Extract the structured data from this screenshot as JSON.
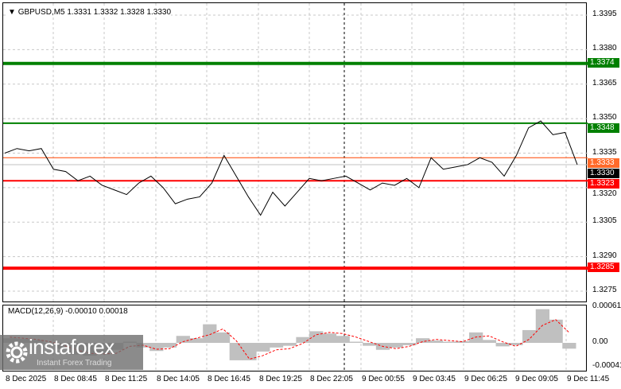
{
  "symbol_header": "GBPUSD,M5  1.3331 1.3332 1.3328 1.3330",
  "price_axis": [
    "1.3395",
    "1.3380",
    "1.3365",
    "1.3350",
    "1.3335",
    "1.3320",
    "1.3305",
    "1.3290",
    "1.3275"
  ],
  "price_axis_values": [
    1.3395,
    1.338,
    1.3365,
    1.335,
    1.3335,
    1.332,
    1.3305,
    1.329,
    1.3275
  ],
  "levels": [
    {
      "label": "1.3374",
      "value": 1.3374,
      "color": "#008000",
      "thick": true
    },
    {
      "label": "1.3348",
      "value": 1.3348,
      "color": "#008000",
      "thick": false
    },
    {
      "label": "1.3333",
      "value": 1.3333,
      "color": "#ff4500",
      "thick": false
    },
    {
      "label": "1.3330",
      "value": 1.333,
      "color": "#000000",
      "thick": false
    },
    {
      "label": "1.3323",
      "value": 1.3323,
      "color": "#ff0000",
      "thick": false
    },
    {
      "label": "1.3285",
      "value": 1.3285,
      "color": "#ff0000",
      "thick": true
    }
  ],
  "price_series": [
    1.3335,
    1.3337,
    1.3336,
    1.3337,
    1.3328,
    1.3327,
    1.3323,
    1.3325,
    1.3321,
    1.3319,
    1.3317,
    1.3322,
    1.3325,
    1.332,
    1.3313,
    1.3315,
    1.3316,
    1.3322,
    1.3334,
    1.3325,
    1.3316,
    1.3308,
    1.3318,
    1.3312,
    1.3318,
    1.3324,
    1.3323,
    1.3324,
    1.3325,
    1.3322,
    1.3319,
    1.3322,
    1.3321,
    1.3324,
    1.332,
    1.3333,
    1.3328,
    1.3329,
    1.333,
    1.3333,
    1.3331,
    1.3325,
    1.3334,
    1.3346,
    1.3349,
    1.3343,
    1.3344,
    1.333
  ],
  "macd": {
    "label": "MACD(12,26,9) -0.00010 0.00018",
    "axis": [
      "0.00061",
      "0.00",
      "-0.00041"
    ],
    "histogram": [
      8e-05,
      7e-05,
      5e-05,
      -2e-05,
      -0.0001,
      -0.0002,
      -0.00022,
      -0.0002,
      -0.00012,
      2e-05,
      -8e-05,
      -0.00014,
      -8e-05,
      0.00012,
      8e-05,
      0.00032,
      0.00018,
      -0.0003,
      -0.0003,
      -0.00015,
      -8e-05,
      -5e-05,
      0.0001,
      0.0002,
      0.00016,
      0.00012,
      2e-05,
      -5e-05,
      -0.00012,
      -8e-05,
      -4e-05,
      8e-05,
      4e-05,
      2e-05,
      3e-05,
      0.00018,
      5e-05,
      -6e-05,
      -4e-05,
      0.00022,
      0.00058,
      0.0004,
      -0.0001
    ],
    "signal": [
      0.0001,
      8e-05,
      6e-05,
      2e-05,
      -4e-05,
      -0.00012,
      -0.00018,
      -0.00019,
      -0.00018,
      -6e-05,
      -4e-05,
      -0.00011,
      -0.0001,
      2e-05,
      8e-05,
      0.00014,
      0.00024,
      4e-05,
      -0.00028,
      -0.00022,
      -0.00012,
      -0.0001,
      -1e-05,
      0.00014,
      0.00018,
      0.00016,
      0.0001,
      2e-05,
      -6e-05,
      -0.0001,
      -6e-05,
      2e-05,
      6e-05,
      4e-05,
      2e-05,
      0.0001,
      0.00012,
      2e-05,
      -6e-05,
      6e-05,
      0.0003,
      0.0004,
      0.00018
    ],
    "hist_color": "#c0c0c0",
    "signal_color": "#ff0000"
  },
  "time_axis": [
    "8 Dec 2025",
    "8 Dec 08:45",
    "8 Dec 11:25",
    "8 Dec 14:05",
    "8 Dec 16:45",
    "8 Dec 19:25",
    "8 Dec 22:05",
    "9 Dec 00:55",
    "9 Dec 03:45",
    "9 Dec 06:25",
    "9 Dec 09:05",
    "9 Dec 11:45"
  ],
  "logo": {
    "name": "instaforex",
    "tagline": "Instant Forex Trading"
  }
}
